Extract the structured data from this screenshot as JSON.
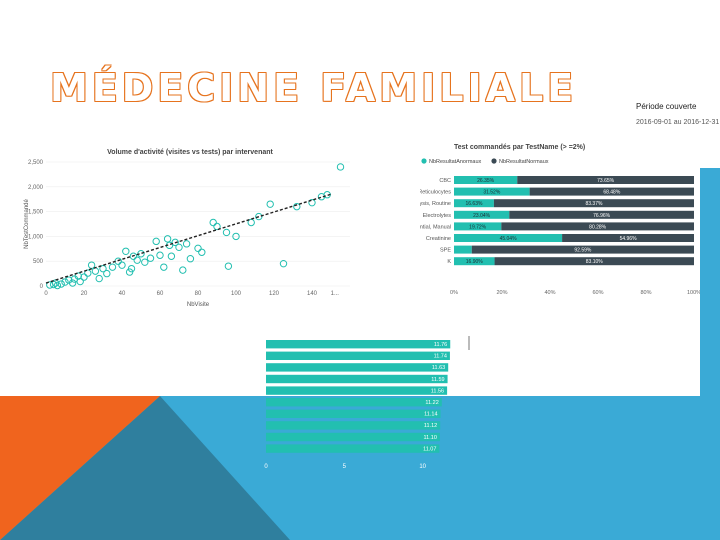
{
  "slide": {
    "title": "MÉDECINE FAMILIALE",
    "period_label": "Période couverte",
    "period_value": "2016-09-01 au 2016-12-31"
  },
  "colors": {
    "accent_orange": "#f0641e",
    "accent_blue": "#3aaad6",
    "teal": "#22bfb0",
    "dark": "#3b4a54",
    "trendline": "#222222"
  },
  "chart_data": [
    {
      "type": "scatter",
      "title": "Volume d'activité (visites vs tests) par intervenant",
      "xlabel": "NbVisite",
      "ylabel": "NbTestCommandé",
      "xlim": [
        0,
        160
      ],
      "ylim": [
        0,
        2500
      ],
      "xticks": [
        "0",
        "20",
        "40",
        "60",
        "80",
        "100",
        "120",
        "140",
        "1..."
      ],
      "yticks": [
        "0",
        "500",
        "1,000",
        "1,500",
        "2,000",
        "2,500"
      ],
      "trendline": [
        [
          0,
          60
        ],
        [
          150,
          1850
        ]
      ],
      "points": [
        [
          2,
          20
        ],
        [
          4,
          30
        ],
        [
          5,
          60
        ],
        [
          6,
          10
        ],
        [
          8,
          40
        ],
        [
          10,
          80
        ],
        [
          12,
          120
        ],
        [
          14,
          60
        ],
        [
          15,
          140
        ],
        [
          17,
          200
        ],
        [
          18,
          90
        ],
        [
          20,
          180
        ],
        [
          22,
          260
        ],
        [
          24,
          420
        ],
        [
          26,
          300
        ],
        [
          28,
          150
        ],
        [
          30,
          350
        ],
        [
          32,
          250
        ],
        [
          35,
          380
        ],
        [
          38,
          500
        ],
        [
          40,
          420
        ],
        [
          42,
          700
        ],
        [
          44,
          280
        ],
        [
          45,
          350
        ],
        [
          46,
          600
        ],
        [
          48,
          520
        ],
        [
          50,
          650
        ],
        [
          52,
          480
        ],
        [
          55,
          560
        ],
        [
          58,
          900
        ],
        [
          60,
          620
        ],
        [
          62,
          380
        ],
        [
          64,
          950
        ],
        [
          65,
          820
        ],
        [
          66,
          600
        ],
        [
          68,
          880
        ],
        [
          70,
          780
        ],
        [
          72,
          320
        ],
        [
          74,
          850
        ],
        [
          76,
          550
        ],
        [
          80,
          760
        ],
        [
          82,
          680
        ],
        [
          88,
          1280
        ],
        [
          90,
          1200
        ],
        [
          95,
          1080
        ],
        [
          96,
          400
        ],
        [
          100,
          1000
        ],
        [
          108,
          1280
        ],
        [
          112,
          1400
        ],
        [
          118,
          1650
        ],
        [
          125,
          450
        ],
        [
          132,
          1600
        ],
        [
          140,
          1680
        ],
        [
          145,
          1800
        ],
        [
          148,
          1840
        ],
        [
          155,
          2400
        ]
      ]
    },
    {
      "type": "bar",
      "title": "Test commandés par TestName (> =2%)",
      "legend": [
        "NbResultatAnormaux",
        "NbResultatNormaux"
      ],
      "categories": [
        "CBC",
        "Reticulocytes",
        "Urinalysis, Routine",
        "Electrolytes",
        "Differential, Manual",
        "Creatinine",
        "SPE",
        "K"
      ],
      "series": [
        {
          "name": "NbResultatAnormaux",
          "values": [
            26.35,
            31.52,
            16.63,
            23.04,
            19.72,
            45.04,
            7.41,
            16.9
          ],
          "labels": [
            "26.35%",
            "31.52%",
            "16.63%",
            "23.04%",
            "19.72%",
            "45.04%",
            "",
            "16.90%"
          ]
        },
        {
          "name": "NbResultatNormaux",
          "values": [
            73.65,
            68.48,
            83.37,
            76.96,
            80.28,
            54.96,
            92.59,
            83.1
          ],
          "labels": [
            "73.65%",
            "68.48%",
            "83.37%",
            "76.96%",
            "80.28%",
            "54.96%",
            "92.59%",
            "83.10%"
          ]
        }
      ],
      "xticks": [
        "0%",
        "20%",
        "40%",
        "60%",
        "80%",
        "100%"
      ]
    },
    {
      "type": "bar",
      "categories": [
        "",
        "",
        "",
        "",
        "",
        "",
        "",
        "",
        "",
        ""
      ],
      "values": [
        11.76,
        11.74,
        11.63,
        11.59,
        11.56,
        11.22,
        11.14,
        11.12,
        11.1,
        11.07
      ],
      "labels": [
        "11.76",
        "11.74",
        "11.63",
        "11.59",
        "11.56",
        "11.22",
        "11.14",
        "11.12",
        "11.10",
        "11.07"
      ],
      "xticks": [
        "0",
        "5",
        "10"
      ],
      "xlim": [
        0,
        12
      ]
    }
  ]
}
